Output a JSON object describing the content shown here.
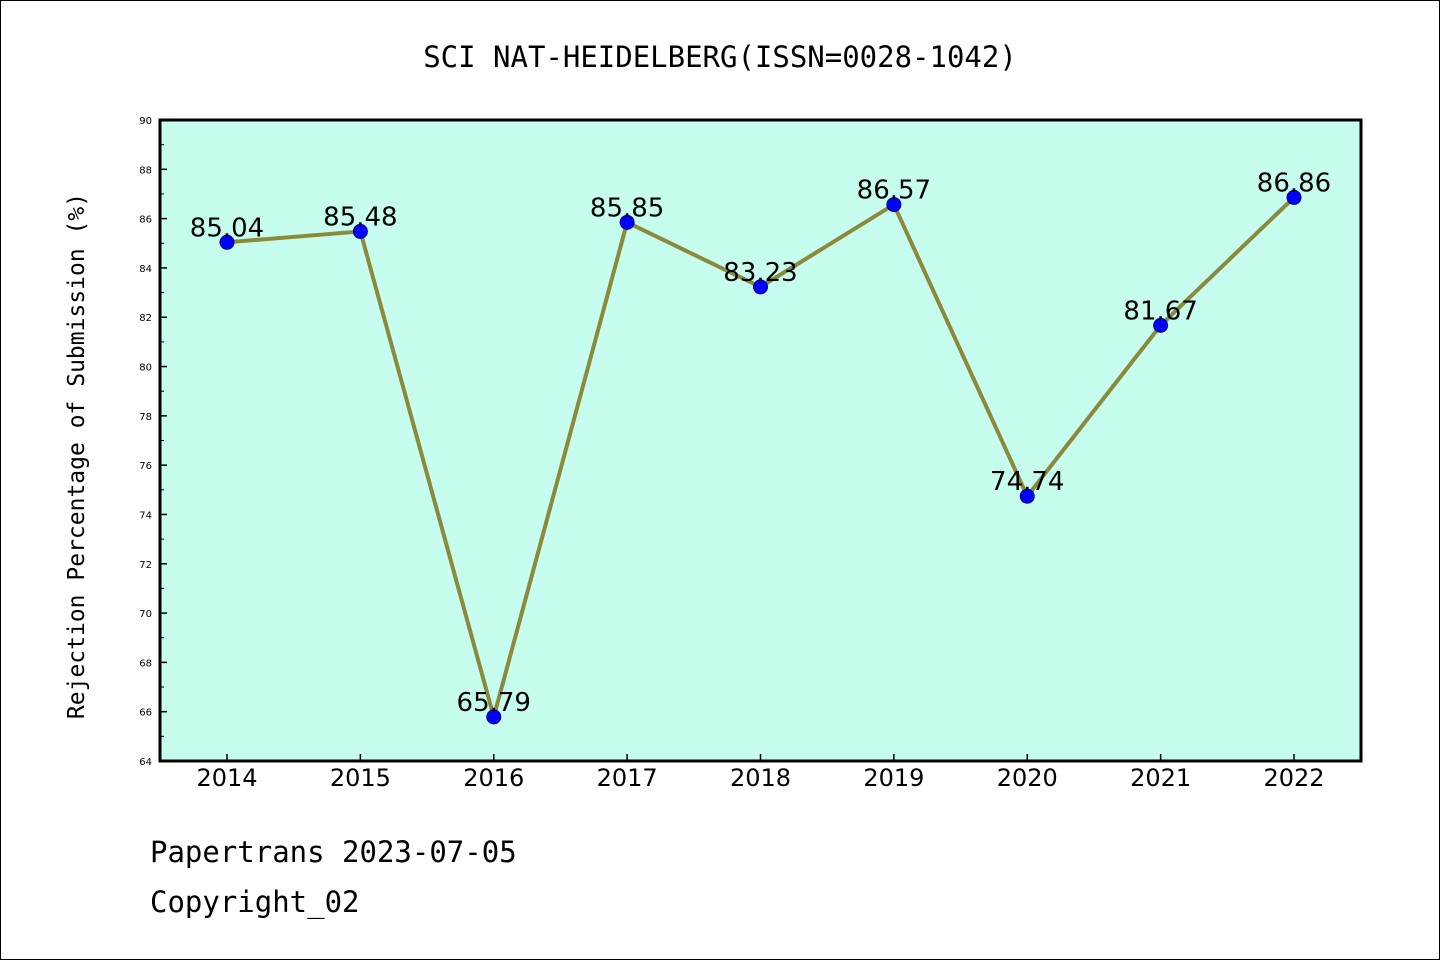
{
  "chart_data": {
    "type": "line",
    "title": "SCI NAT-HEIDELBERG(ISSN=0028-1042)",
    "xlabel": "",
    "ylabel": "Rejection Percentage of Submission (%)",
    "categories": [
      "2014",
      "2015",
      "2016",
      "2017",
      "2018",
      "2019",
      "2020",
      "2021",
      "2022"
    ],
    "values": [
      85.04,
      85.48,
      65.79,
      85.85,
      83.23,
      86.57,
      74.74,
      81.67,
      86.86
    ],
    "data_labels": [
      "85.04",
      "85.48",
      "65.79",
      "85.85",
      "83.23",
      "86.57",
      "74.74",
      "81.67",
      "86.86"
    ],
    "ylim": [
      64,
      90
    ],
    "y_major_ticks": [
      "64",
      "66",
      "68",
      "70",
      "72",
      "74",
      "76",
      "78",
      "80",
      "82",
      "84",
      "86",
      "88",
      "90"
    ],
    "grid": false,
    "legend": "none",
    "colors": {
      "plot_background": "#c7fdee",
      "line": "#8b8a3a",
      "marker": "#0000ff",
      "axes": "#000000"
    }
  },
  "footer": {
    "line1": "Papertrans 2023-07-05",
    "line2": "Copyright_02"
  }
}
